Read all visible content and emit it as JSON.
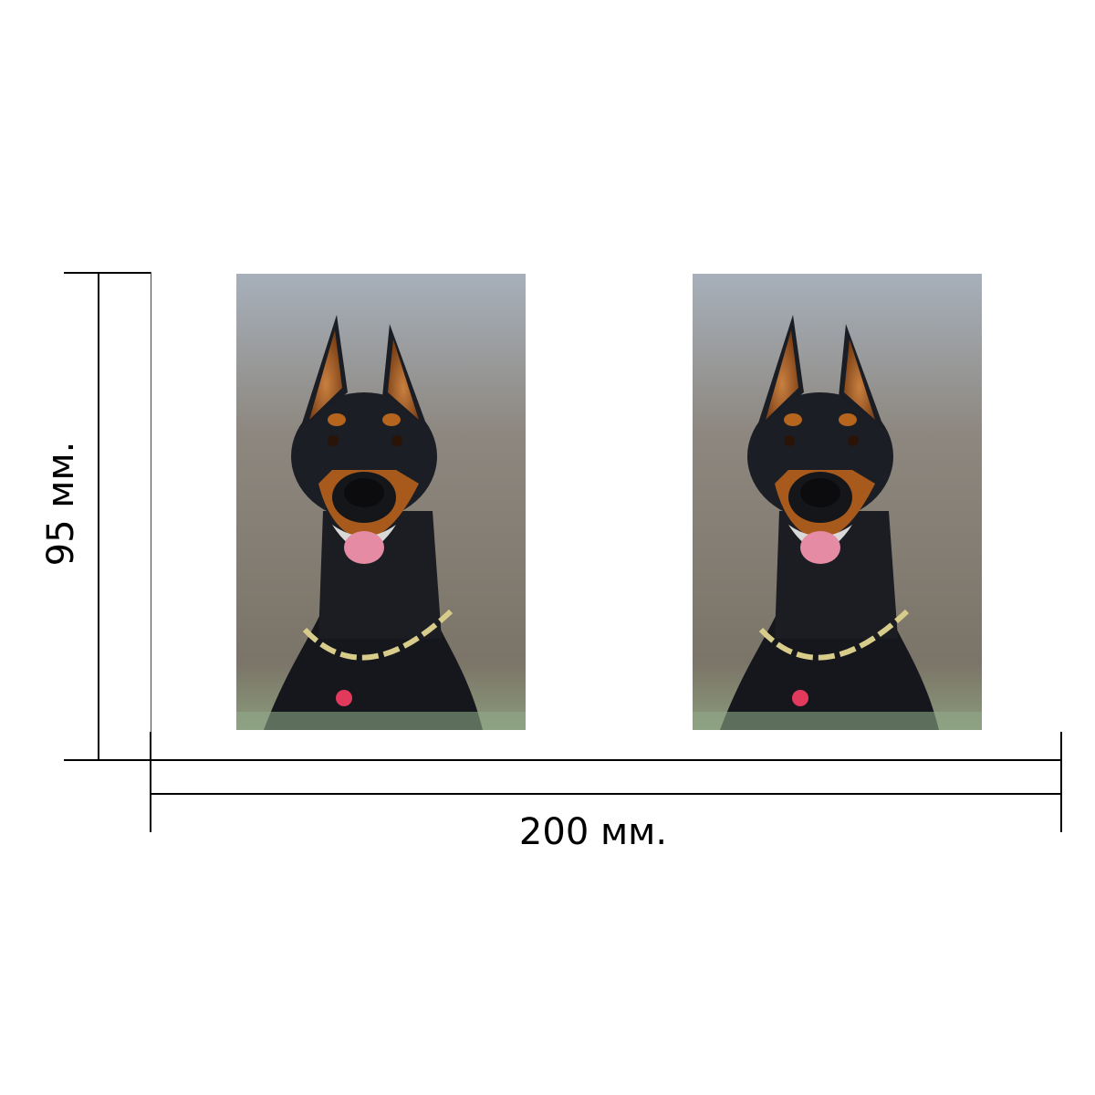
{
  "dimensions": {
    "height_label": "95 мм.",
    "width_label": "200 мм."
  },
  "photos": [
    {
      "subject": "doberman-portrait",
      "icon": "dog-photo-icon"
    },
    {
      "subject": "doberman-portrait",
      "icon": "dog-photo-icon"
    }
  ],
  "colors": {
    "line": "#000000",
    "background": "#ffffff",
    "dog_black": "#1a1c22",
    "dog_tan": "#b5651d",
    "collar": "#d8cc8a",
    "tag": "#e23a5c",
    "tongue": "#e58ca4"
  }
}
